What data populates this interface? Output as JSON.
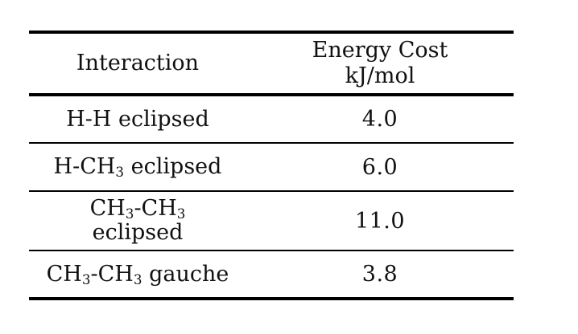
{
  "table": {
    "headers": {
      "interaction": "Interaction",
      "energy_line1": "Energy Cost",
      "energy_line2": "kJ/mol"
    },
    "rows": [
      {
        "interaction": {
          "a": "H-H eclipsed"
        },
        "energy": "4.0"
      },
      {
        "interaction": {
          "a": "H-CH",
          "sub1": "3",
          "b": " eclipsed"
        },
        "energy": "6.0"
      },
      {
        "interaction": {
          "a": "CH",
          "sub1": "3",
          "b": "-CH",
          "sub2": "3",
          "line2": "eclipsed"
        },
        "energy": "11.0"
      },
      {
        "interaction": {
          "a": "CH",
          "sub1": "3",
          "b": "-CH",
          "sub2": "3",
          "c": " gauche"
        },
        "energy": "3.8"
      }
    ]
  }
}
